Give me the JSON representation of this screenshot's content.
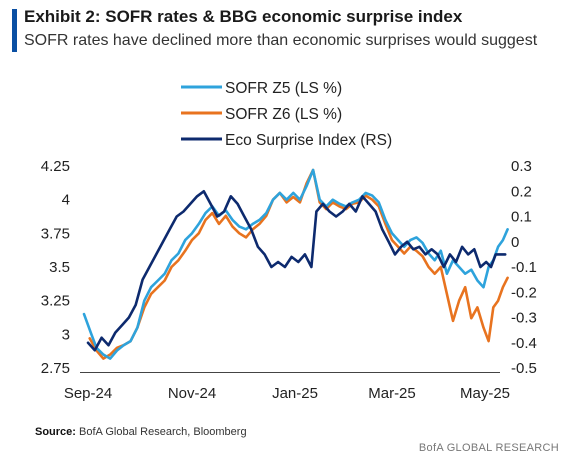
{
  "header": {
    "title": "Exhibit 2: SOFR rates & BBG economic surprise index",
    "subtitle": "SOFR rates have declined more than economic surprises would suggest"
  },
  "footer": {
    "source_label": "Source:",
    "source_text": "BofA Global Research, Bloomberg",
    "brand": "BofA GLOBAL RESEARCH"
  },
  "colors": {
    "sofr_z5": "#2ea3dc",
    "sofr_z6": "#e8731f",
    "eco_surprise": "#0d2a6e",
    "accent": "#0a4fa3"
  },
  "chart_data": {
    "type": "line",
    "x_tick_labels": [
      "Sep-24",
      "Nov-24",
      "Jan-25",
      "Mar-25",
      "May-25"
    ],
    "x_tick_dates": [
      "2024-09-01",
      "2024-11-01",
      "2025-01-01",
      "2025-03-01",
      "2025-05-01"
    ],
    "y_left": {
      "range": [
        2.75,
        4.25
      ],
      "ticks": [
        2.75,
        3,
        3.25,
        3.5,
        3.75,
        4,
        4.25
      ],
      "tick_labels": [
        "2.75",
        "3",
        "3.25",
        "3.5",
        "3.75",
        "4",
        "4.25"
      ]
    },
    "y_right": {
      "range": [
        -0.5,
        0.3
      ],
      "ticks": [
        -0.5,
        -0.4,
        -0.3,
        -0.2,
        -0.1,
        0,
        0.1,
        0.2,
        0.3
      ],
      "tick_labels": [
        "-0.5",
        "-0.4",
        "-0.3",
        "-0.2",
        "-0.1",
        "0",
        "0.1",
        "0.2",
        "0.3"
      ]
    },
    "grid": false,
    "legend_position": "top",
    "series": [
      {
        "name": "SOFR Z5 (LS %)",
        "axis": "left",
        "color": "#2ea3dc",
        "points": [
          [
            "2024-08-30",
            3.15
          ],
          [
            "2024-09-03",
            3.0
          ],
          [
            "2024-09-06",
            2.9
          ],
          [
            "2024-09-10",
            2.85
          ],
          [
            "2024-09-14",
            2.82
          ],
          [
            "2024-09-18",
            2.88
          ],
          [
            "2024-09-22",
            2.92
          ],
          [
            "2024-09-26",
            2.95
          ],
          [
            "2024-09-30",
            3.05
          ],
          [
            "2024-10-04",
            3.25
          ],
          [
            "2024-10-08",
            3.35
          ],
          [
            "2024-10-12",
            3.4
          ],
          [
            "2024-10-16",
            3.45
          ],
          [
            "2024-10-20",
            3.55
          ],
          [
            "2024-10-24",
            3.6
          ],
          [
            "2024-10-28",
            3.7
          ],
          [
            "2024-11-01",
            3.75
          ],
          [
            "2024-11-05",
            3.82
          ],
          [
            "2024-11-09",
            3.9
          ],
          [
            "2024-11-13",
            3.95
          ],
          [
            "2024-11-17",
            3.88
          ],
          [
            "2024-11-21",
            3.92
          ],
          [
            "2024-11-25",
            3.85
          ],
          [
            "2024-11-29",
            3.8
          ],
          [
            "2024-12-03",
            3.78
          ],
          [
            "2024-12-07",
            3.82
          ],
          [
            "2024-12-11",
            3.85
          ],
          [
            "2024-12-15",
            3.9
          ],
          [
            "2024-12-19",
            4.0
          ],
          [
            "2024-12-23",
            4.05
          ],
          [
            "2024-12-27",
            4.0
          ],
          [
            "2024-12-31",
            4.05
          ],
          [
            "2025-01-04",
            4.0
          ],
          [
            "2025-01-08",
            4.1
          ],
          [
            "2025-01-12",
            4.22
          ],
          [
            "2025-01-16",
            4.0
          ],
          [
            "2025-01-20",
            3.95
          ],
          [
            "2025-01-24",
            4.0
          ],
          [
            "2025-01-28",
            3.97
          ],
          [
            "2025-02-01",
            3.95
          ],
          [
            "2025-02-05",
            3.98
          ],
          [
            "2025-02-09",
            4.0
          ],
          [
            "2025-02-13",
            4.05
          ],
          [
            "2025-02-17",
            4.03
          ],
          [
            "2025-02-21",
            3.98
          ],
          [
            "2025-02-25",
            3.85
          ],
          [
            "2025-03-01",
            3.75
          ],
          [
            "2025-03-05",
            3.7
          ],
          [
            "2025-03-09",
            3.65
          ],
          [
            "2025-03-13",
            3.7
          ],
          [
            "2025-03-17",
            3.72
          ],
          [
            "2025-03-21",
            3.68
          ],
          [
            "2025-03-25",
            3.6
          ],
          [
            "2025-03-29",
            3.55
          ],
          [
            "2025-04-02",
            3.62
          ],
          [
            "2025-04-06",
            3.45
          ],
          [
            "2025-04-10",
            3.55
          ],
          [
            "2025-04-14",
            3.5
          ],
          [
            "2025-04-18",
            3.45
          ],
          [
            "2025-04-22",
            3.48
          ],
          [
            "2025-04-26",
            3.4
          ],
          [
            "2025-04-30",
            3.35
          ],
          [
            "2025-05-04",
            3.5
          ],
          [
            "2025-05-08",
            3.55
          ],
          [
            "2025-05-12",
            3.65
          ],
          [
            "2025-05-16",
            3.7
          ],
          [
            "2025-05-20",
            3.78
          ]
        ]
      },
      {
        "name": "SOFR Z6 (LS %)",
        "axis": "left",
        "color": "#e8731f",
        "points": [
          [
            "2024-09-02",
            2.97
          ],
          [
            "2024-09-06",
            2.88
          ],
          [
            "2024-09-10",
            2.82
          ],
          [
            "2024-09-14",
            2.85
          ],
          [
            "2024-09-18",
            2.9
          ],
          [
            "2024-09-22",
            2.92
          ],
          [
            "2024-09-26",
            2.95
          ],
          [
            "2024-09-30",
            3.05
          ],
          [
            "2024-10-04",
            3.2
          ],
          [
            "2024-10-08",
            3.3
          ],
          [
            "2024-10-12",
            3.35
          ],
          [
            "2024-10-16",
            3.4
          ],
          [
            "2024-10-20",
            3.5
          ],
          [
            "2024-10-24",
            3.55
          ],
          [
            "2024-10-28",
            3.62
          ],
          [
            "2024-11-01",
            3.7
          ],
          [
            "2024-11-05",
            3.75
          ],
          [
            "2024-11-09",
            3.85
          ],
          [
            "2024-11-13",
            3.9
          ],
          [
            "2024-11-17",
            3.82
          ],
          [
            "2024-11-21",
            3.88
          ],
          [
            "2024-11-25",
            3.8
          ],
          [
            "2024-11-29",
            3.75
          ],
          [
            "2024-12-03",
            3.72
          ],
          [
            "2024-12-07",
            3.78
          ],
          [
            "2024-12-11",
            3.82
          ],
          [
            "2024-12-15",
            3.88
          ],
          [
            "2024-12-19",
            4.0
          ],
          [
            "2024-12-23",
            4.05
          ],
          [
            "2024-12-27",
            3.98
          ],
          [
            "2024-12-31",
            4.02
          ],
          [
            "2025-01-04",
            3.98
          ],
          [
            "2025-01-08",
            4.12
          ],
          [
            "2025-01-12",
            4.22
          ],
          [
            "2025-01-16",
            3.98
          ],
          [
            "2025-01-20",
            3.93
          ],
          [
            "2025-01-24",
            3.98
          ],
          [
            "2025-01-28",
            3.95
          ],
          [
            "2025-02-01",
            3.93
          ],
          [
            "2025-02-05",
            3.97
          ],
          [
            "2025-02-09",
            3.98
          ],
          [
            "2025-02-13",
            4.03
          ],
          [
            "2025-02-17",
            4.0
          ],
          [
            "2025-02-21",
            3.95
          ],
          [
            "2025-02-25",
            3.82
          ],
          [
            "2025-03-01",
            3.7
          ],
          [
            "2025-03-05",
            3.65
          ],
          [
            "2025-03-09",
            3.6
          ],
          [
            "2025-03-13",
            3.65
          ],
          [
            "2025-03-17",
            3.62
          ],
          [
            "2025-03-21",
            3.58
          ],
          [
            "2025-03-25",
            3.5
          ],
          [
            "2025-03-29",
            3.45
          ],
          [
            "2025-04-02",
            3.5
          ],
          [
            "2025-04-06",
            3.3
          ],
          [
            "2025-04-10",
            3.1
          ],
          [
            "2025-04-14",
            3.25
          ],
          [
            "2025-04-18",
            3.35
          ],
          [
            "2025-04-22",
            3.12
          ],
          [
            "2025-04-26",
            3.2
          ],
          [
            "2025-04-30",
            3.05
          ],
          [
            "2025-05-04",
            2.95
          ],
          [
            "2025-05-08",
            3.2
          ],
          [
            "2025-05-12",
            3.25
          ],
          [
            "2025-05-16",
            3.35
          ],
          [
            "2025-05-20",
            3.42
          ]
        ]
      },
      {
        "name": "Eco Surprise Index (RS)",
        "axis": "right",
        "color": "#0d2a6e",
        "points": [
          [
            "2024-09-01",
            -0.4
          ],
          [
            "2024-09-05",
            -0.43
          ],
          [
            "2024-09-09",
            -0.38
          ],
          [
            "2024-09-13",
            -0.41
          ],
          [
            "2024-09-17",
            -0.36
          ],
          [
            "2024-09-21",
            -0.33
          ],
          [
            "2024-09-25",
            -0.3
          ],
          [
            "2024-09-29",
            -0.25
          ],
          [
            "2024-10-03",
            -0.15
          ],
          [
            "2024-10-07",
            -0.1
          ],
          [
            "2024-10-11",
            -0.05
          ],
          [
            "2024-10-15",
            0.0
          ],
          [
            "2024-10-19",
            0.05
          ],
          [
            "2024-10-23",
            0.1
          ],
          [
            "2024-10-27",
            0.12
          ],
          [
            "2024-10-31",
            0.15
          ],
          [
            "2024-11-04",
            0.18
          ],
          [
            "2024-11-08",
            0.2
          ],
          [
            "2024-11-12",
            0.15
          ],
          [
            "2024-11-16",
            0.1
          ],
          [
            "2024-11-20",
            0.12
          ],
          [
            "2024-11-24",
            0.18
          ],
          [
            "2024-11-28",
            0.15
          ],
          [
            "2024-12-02",
            0.1
          ],
          [
            "2024-12-06",
            0.05
          ],
          [
            "2024-12-10",
            -0.02
          ],
          [
            "2024-12-14",
            -0.05
          ],
          [
            "2024-12-18",
            -0.1
          ],
          [
            "2024-12-22",
            -0.08
          ],
          [
            "2024-12-26",
            -0.1
          ],
          [
            "2024-12-30",
            -0.06
          ],
          [
            "2025-01-03",
            -0.08
          ],
          [
            "2025-01-07",
            -0.05
          ],
          [
            "2025-01-11",
            -0.1
          ],
          [
            "2025-01-14",
            0.12
          ],
          [
            "2025-01-18",
            0.15
          ],
          [
            "2025-01-22",
            0.12
          ],
          [
            "2025-01-26",
            0.1
          ],
          [
            "2025-01-30",
            0.12
          ],
          [
            "2025-02-03",
            0.15
          ],
          [
            "2025-02-07",
            0.12
          ],
          [
            "2025-02-11",
            0.18
          ],
          [
            "2025-02-15",
            0.15
          ],
          [
            "2025-02-19",
            0.12
          ],
          [
            "2025-02-23",
            0.05
          ],
          [
            "2025-02-27",
            0.0
          ],
          [
            "2025-03-03",
            -0.05
          ],
          [
            "2025-03-07",
            -0.02
          ],
          [
            "2025-03-11",
            0.0
          ],
          [
            "2025-03-15",
            -0.03
          ],
          [
            "2025-03-19",
            -0.02
          ],
          [
            "2025-03-23",
            -0.05
          ],
          [
            "2025-03-27",
            -0.03
          ],
          [
            "2025-03-31",
            -0.05
          ],
          [
            "2025-04-04",
            -0.1
          ],
          [
            "2025-04-08",
            -0.05
          ],
          [
            "2025-04-12",
            -0.08
          ],
          [
            "2025-04-16",
            -0.02
          ],
          [
            "2025-04-20",
            -0.05
          ],
          [
            "2025-04-24",
            -0.03
          ],
          [
            "2025-04-28",
            -0.1
          ],
          [
            "2025-05-02",
            -0.08
          ],
          [
            "2025-05-06",
            -0.1
          ],
          [
            "2025-05-10",
            -0.05
          ],
          [
            "2025-05-14",
            -0.05
          ],
          [
            "2025-05-18",
            -0.05
          ]
        ]
      }
    ]
  }
}
